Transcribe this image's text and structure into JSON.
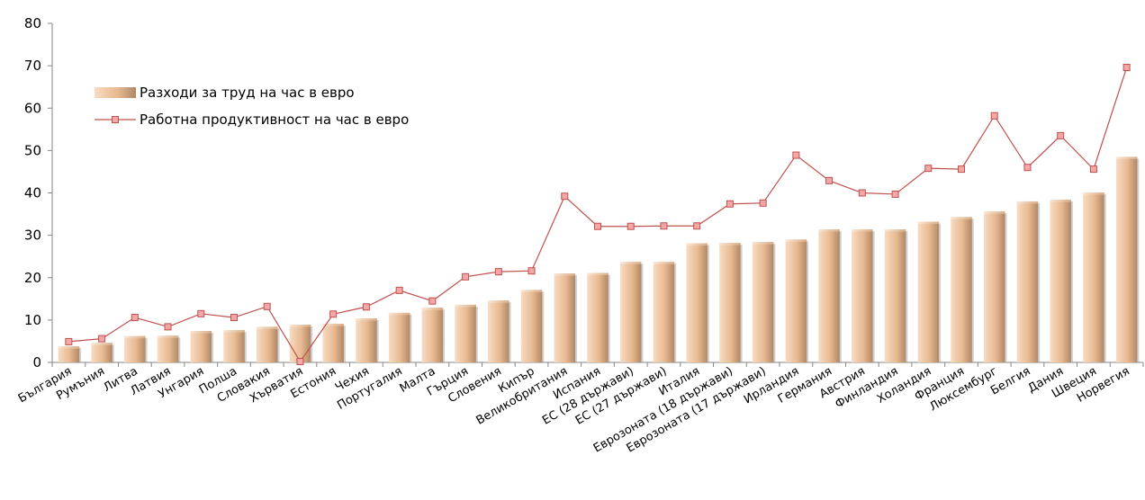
{
  "chart_data": {
    "type": "bar",
    "categories": [
      "България",
      "Румъния",
      "Литва",
      "Латвия",
      "Унгария",
      "Полша",
      "Словакия",
      "Хърватия",
      "Естония",
      "Чехия",
      "Португалия",
      "Малта",
      "Гърция",
      "Словения",
      "Кипър",
      "Великобритания",
      "Испания",
      "ЕС (28 държави)",
      "ЕС (27 държави)",
      "Италия",
      "Еврозоната (18 държави)",
      "Еврозоната (17 държави)",
      "Ирландия",
      "Германия",
      "Австрия",
      "Финландия",
      "Холандия",
      "Франция",
      "Люксембург",
      "Белгия",
      "Дания",
      "Швеция",
      "Норвегия"
    ],
    "series": [
      {
        "name": "Разходи за труд на час в евро",
        "kind": "bar",
        "values": [
          3.8,
          4.6,
          6.2,
          6.3,
          7.4,
          7.6,
          8.4,
          8.9,
          9.1,
          10.4,
          11.7,
          12.9,
          13.6,
          14.6,
          17.1,
          21.0,
          21.1,
          23.7,
          23.7,
          28.1,
          28.2,
          28.4,
          29.0,
          31.4,
          31.4,
          31.4,
          33.2,
          34.3,
          35.6,
          38.0,
          38.4,
          40.1,
          48.5
        ]
      },
      {
        "name": "Работна продуктивност на час в евро",
        "kind": "line",
        "color": "#c0504d",
        "marker_fill": "#f4a7a7",
        "values": [
          4.9,
          5.6,
          10.6,
          8.4,
          11.5,
          10.6,
          13.2,
          0.2,
          11.4,
          13.1,
          17.0,
          14.5,
          20.2,
          21.4,
          21.6,
          39.2,
          32.1,
          32.1,
          32.2,
          32.2,
          37.4,
          37.6,
          48.9,
          42.9,
          40.0,
          39.7,
          45.8,
          45.6,
          58.2,
          46.0,
          53.5,
          45.6,
          69.6
        ]
      }
    ],
    "y_ticks": [
      "0",
      "10",
      "20",
      "30",
      "40",
      "50",
      "60",
      "70",
      "80"
    ],
    "ylim": [
      0,
      80
    ],
    "grid": false,
    "legend_position": "top-left",
    "bar_color": "#e8b991",
    "title": "",
    "xlabel": "",
    "ylabel": ""
  }
}
